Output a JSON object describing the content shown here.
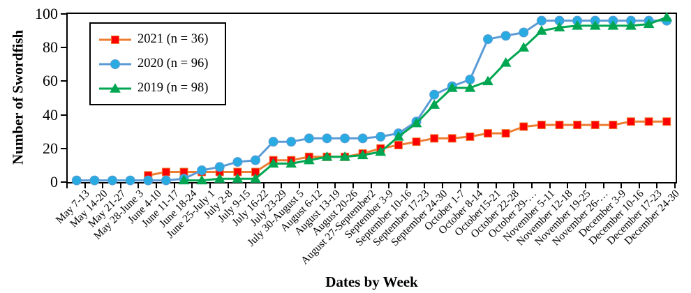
{
  "chart_data": {
    "type": "line",
    "title": "",
    "xlabel": "Dates by Week",
    "ylabel": "Number of Swordfish",
    "ylim": [
      0,
      100
    ],
    "yticks": [
      0,
      20,
      40,
      60,
      80,
      100
    ],
    "grid": false,
    "legend_position": "top-left",
    "categories": [
      "May 7-13",
      "May 14-20",
      "May 21-27",
      "May 28-June 3",
      "June 4-10",
      "June 11-17",
      "June 18-24",
      "June 25-July 1",
      "July 2-8",
      "July 9-15",
      "July 16-22",
      "July 23-29",
      "July 30-August 5",
      "August 6-12",
      "August 13-19",
      "August 20-26",
      "August 27-September2",
      "September 3-9",
      "September 10-16",
      "September 17-23",
      "September 24-30",
      "October 1-7",
      "October 8-14",
      "October15-21",
      "October 22-28",
      "October 29-…",
      "November 5-11",
      "November 12-18",
      "November 19-25",
      "November 26-…",
      "December 3-9",
      "December 10-16",
      "December 17-23",
      "December 24-30"
    ],
    "series": [
      {
        "name": "2021 (n = 36)",
        "marker": "square",
        "line_color": "#ED7D31",
        "marker_color": "#FE0000",
        "values": [
          null,
          null,
          null,
          null,
          4,
          6,
          6,
          6,
          6,
          6,
          6,
          13,
          13,
          15,
          15,
          15,
          17,
          20,
          22,
          24,
          26,
          26,
          27,
          29,
          29,
          33,
          34,
          34,
          34,
          34,
          34,
          36,
          36,
          36
        ]
      },
      {
        "name": "2020 (n = 96)",
        "marker": "circle",
        "line_color": "#5B9BD5",
        "marker_color": "#29ABE2",
        "values": [
          1,
          1,
          1,
          1,
          1,
          1,
          2,
          7,
          9,
          12,
          13,
          24,
          24,
          26,
          26,
          26,
          26,
          27,
          29,
          36,
          52,
          57,
          61,
          85,
          87,
          89,
          96,
          96,
          96,
          96,
          96,
          96,
          96,
          96
        ]
      },
      {
        "name": "2019 (n = 98)",
        "marker": "triangle",
        "line_color": "#00A651",
        "marker_color": "#00A651",
        "values": [
          null,
          null,
          null,
          null,
          null,
          null,
          1,
          1,
          2,
          2,
          2,
          11,
          11,
          13,
          15,
          15,
          16,
          18,
          27,
          35,
          46,
          56,
          56,
          60,
          71,
          80,
          90,
          92,
          93,
          93,
          93,
          93,
          94,
          98
        ]
      }
    ]
  }
}
